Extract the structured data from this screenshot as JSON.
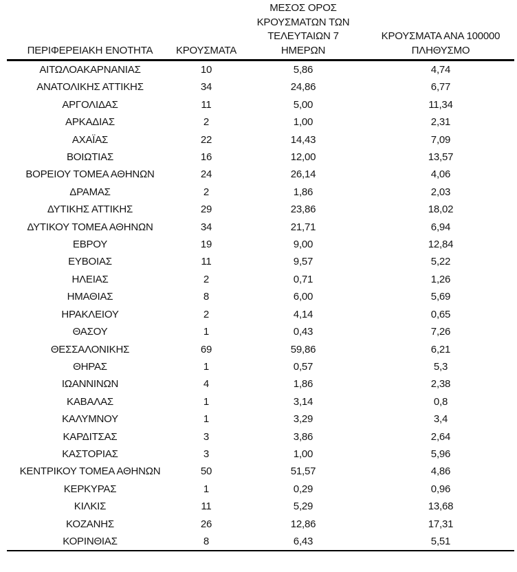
{
  "colors": {
    "background": "#ffffff",
    "text": "#141414",
    "rule": "#000000"
  },
  "table": {
    "headers": [
      "ΠΕΡΙΦΕΡΕΙΑΚΗ ΕΝΟΤΗΤΑ",
      "ΚΡΟΥΣΜΑΤΑ",
      "ΜΕΣΟΣ ΟΡΟΣ\nΚΡΟΥΣΜΑΤΩΝ ΤΩΝ\nΤΕΛΕΥΤΑΙΩΝ 7\nΗΜΕΡΩΝ",
      "ΚΡΟΥΣΜΑΤΑ ΑΝΑ 100000\nΠΛΗΘΥΣΜΟ"
    ],
    "rows": [
      [
        "ΑΙΤΩΛΟΑΚΑΡΝΑΝΙΑΣ",
        "10",
        "5,86",
        "4,74"
      ],
      [
        "ΑΝΑΤΟΛΙΚΗΣ ΑΤΤΙΚΗΣ",
        "34",
        "24,86",
        "6,77"
      ],
      [
        "ΑΡΓΟΛΙΔΑΣ",
        "11",
        "5,00",
        "11,34"
      ],
      [
        "ΑΡΚΑΔΙΑΣ",
        "2",
        "1,00",
        "2,31"
      ],
      [
        "ΑΧΑΪΑΣ",
        "22",
        "14,43",
        "7,09"
      ],
      [
        "ΒΟΙΩΤΙΑΣ",
        "16",
        "12,00",
        "13,57"
      ],
      [
        "ΒΟΡΕΙΟΥ ΤΟΜΕΑ ΑΘΗΝΩΝ",
        "24",
        "26,14",
        "4,06"
      ],
      [
        "ΔΡΑΜΑΣ",
        "2",
        "1,86",
        "2,03"
      ],
      [
        "ΔΥΤΙΚΗΣ ΑΤΤΙΚΗΣ",
        "29",
        "23,86",
        "18,02"
      ],
      [
        "ΔΥΤΙΚΟΥ ΤΟΜΕΑ ΑΘΗΝΩΝ",
        "34",
        "21,71",
        "6,94"
      ],
      [
        "ΕΒΡΟΥ",
        "19",
        "9,00",
        "12,84"
      ],
      [
        "ΕΥΒΟΙΑΣ",
        "11",
        "9,57",
        "5,22"
      ],
      [
        "ΗΛΕΙΑΣ",
        "2",
        "0,71",
        "1,26"
      ],
      [
        "ΗΜΑΘΙΑΣ",
        "8",
        "6,00",
        "5,69"
      ],
      [
        "ΗΡΑΚΛΕΙΟΥ",
        "2",
        "4,14",
        "0,65"
      ],
      [
        "ΘΑΣΟΥ",
        "1",
        "0,43",
        "7,26"
      ],
      [
        "ΘΕΣΣΑΛΟΝΙΚΗΣ",
        "69",
        "59,86",
        "6,21"
      ],
      [
        "ΘΗΡΑΣ",
        "1",
        "0,57",
        "5,3"
      ],
      [
        "ΙΩΑΝΝΙΝΩΝ",
        "4",
        "1,86",
        "2,38"
      ],
      [
        "ΚΑΒΑΛΑΣ",
        "1",
        "3,14",
        "0,8"
      ],
      [
        "ΚΑΛΥΜΝΟΥ",
        "1",
        "3,29",
        "3,4"
      ],
      [
        "ΚΑΡΔΙΤΣΑΣ",
        "3",
        "3,86",
        "2,64"
      ],
      [
        "ΚΑΣΤΟΡΙΑΣ",
        "3",
        "1,00",
        "5,96"
      ],
      [
        "ΚΕΝΤΡΙΚΟΥ ΤΟΜΕΑ ΑΘΗΝΩΝ",
        "50",
        "51,57",
        "4,86"
      ],
      [
        "ΚΕΡΚΥΡΑΣ",
        "1",
        "0,29",
        "0,96"
      ],
      [
        "ΚΙΛΚΙΣ",
        "11",
        "5,29",
        "13,68"
      ],
      [
        "ΚΟΖΑΝΗΣ",
        "26",
        "12,86",
        "17,31"
      ],
      [
        "ΚΟΡΙΝΘΙΑΣ",
        "8",
        "6,43",
        "5,51"
      ]
    ]
  }
}
